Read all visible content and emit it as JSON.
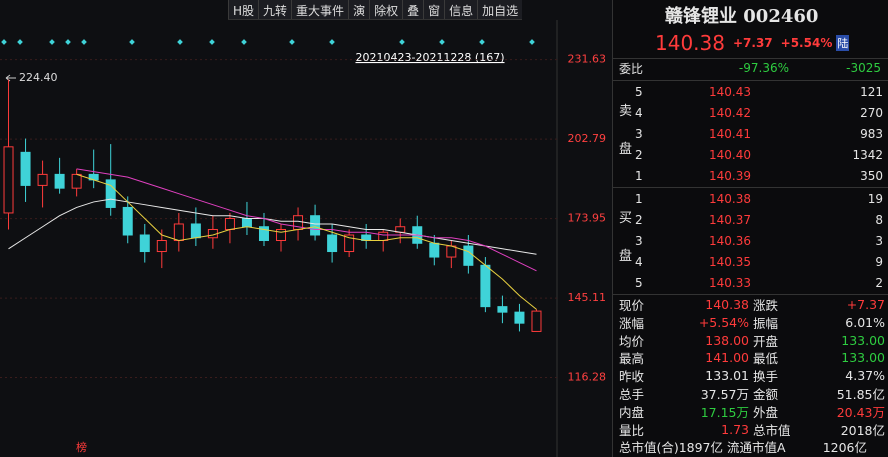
{
  "toolbar": [
    "H股",
    "九转",
    "重大事件",
    "演",
    "除权",
    "叠",
    "窗",
    "信息",
    "加自选"
  ],
  "chart_data": {
    "type": "candlestick",
    "range_label": "20210423-20211228 (167)",
    "high_label": "224.40",
    "corner_label": "榜",
    "open": [
      176,
      198,
      186,
      190,
      185,
      190,
      188,
      178,
      168,
      162,
      166,
      172,
      167,
      170,
      174,
      171,
      166,
      170,
      175,
      168,
      162,
      168,
      166,
      169,
      171,
      165,
      160,
      164,
      157,
      142,
      140,
      133
    ],
    "high": [
      224.4,
      203,
      195,
      196,
      192,
      199,
      201,
      182,
      172,
      170,
      176,
      178,
      175,
      176,
      180,
      176,
      172,
      178,
      179,
      172,
      170,
      172,
      170,
      174,
      175,
      168,
      166,
      168,
      160,
      146,
      143,
      141
    ],
    "low": [
      170,
      180,
      178,
      183,
      182,
      185,
      175,
      165,
      158,
      156,
      162,
      164,
      163,
      165,
      168,
      164,
      162,
      166,
      166,
      158,
      160,
      163,
      162,
      165,
      163,
      157,
      156,
      154,
      140,
      136,
      133,
      133
    ],
    "close": [
      200,
      186,
      190,
      185,
      190,
      188,
      178,
      168,
      162,
      166,
      172,
      167,
      170,
      174,
      171,
      166,
      170,
      175,
      168,
      162,
      168,
      166,
      169,
      171,
      165,
      160,
      164,
      157,
      142,
      140,
      136,
      140.38
    ],
    "up_color": "#ff3b3b",
    "down_color": "#3fd3d8",
    "series": [
      {
        "color": "#e8e8e8",
        "values": [
          163,
          167,
          171,
          175,
          178,
          180,
          181,
          180,
          179,
          178,
          177,
          176,
          175,
          175,
          174,
          174,
          173,
          173,
          172,
          172,
          171,
          170,
          170,
          169,
          168,
          167,
          166,
          165,
          164,
          163,
          162,
          161
        ]
      },
      {
        "color": "#e040c0",
        "values": [
          null,
          null,
          null,
          null,
          192,
          191,
          190,
          189,
          187,
          185,
          183,
          181,
          179,
          177,
          175,
          174,
          172,
          171,
          170,
          170,
          169,
          169,
          168,
          168,
          168,
          167,
          167,
          166,
          164,
          161,
          158,
          155
        ]
      },
      {
        "color": "#e8d040",
        "values": [
          null,
          null,
          null,
          null,
          190,
          188,
          186,
          180,
          174,
          168,
          166,
          167,
          168,
          170,
          171,
          170,
          169,
          170,
          171,
          169,
          167,
          166,
          166,
          167,
          167,
          165,
          164,
          162,
          157,
          152,
          146,
          141
        ]
      }
    ],
    "ylim": [
      93.6,
      242.4
    ],
    "yticks": [
      231.63,
      202.79,
      173.95,
      145.11,
      116.28
    ],
    "grid": true
  },
  "quote": {
    "name": "赣锋锂业 002460",
    "price": "140.38",
    "change": "+7.37",
    "pct": "+5.54%",
    "badge": "陆"
  },
  "committee": {
    "label": "委比",
    "ratio": "-97.36%",
    "diff": "-3025"
  },
  "sell": {
    "side": [
      "卖",
      "盘"
    ],
    "rows": [
      [
        "5",
        "140.43",
        "121"
      ],
      [
        "4",
        "140.42",
        "270"
      ],
      [
        "3",
        "140.41",
        "983"
      ],
      [
        "2",
        "140.40",
        "1342"
      ],
      [
        "1",
        "140.39",
        "350"
      ]
    ]
  },
  "buy": {
    "side": [
      "买",
      "盘"
    ],
    "rows": [
      [
        "1",
        "140.38",
        "19"
      ],
      [
        "2",
        "140.37",
        "8"
      ],
      [
        "3",
        "140.36",
        "3"
      ],
      [
        "4",
        "140.35",
        "9"
      ],
      [
        "5",
        "140.33",
        "2"
      ]
    ]
  },
  "stats": [
    [
      [
        "现价",
        "140.38",
        "red"
      ],
      [
        "涨跌",
        "+7.37",
        "red"
      ]
    ],
    [
      [
        "涨幅",
        "+5.54%",
        "red"
      ],
      [
        "振幅",
        "6.01%",
        "white"
      ]
    ],
    [
      [
        "均价",
        "138.00",
        "red"
      ],
      [
        "开盘",
        "133.00",
        "green"
      ]
    ],
    [
      [
        "最高",
        "141.00",
        "red"
      ],
      [
        "最低",
        "133.00",
        "green"
      ]
    ],
    [
      [
        "昨收",
        "133.01",
        "white"
      ],
      [
        "换手",
        "4.37%",
        "white"
      ]
    ],
    [
      [
        "总手",
        "37.57万",
        "white"
      ],
      [
        "金额",
        "51.85亿",
        "white"
      ]
    ],
    [
      [
        "内盘",
        "17.15万",
        "green"
      ],
      [
        "外盘",
        "20.43万",
        "red"
      ]
    ],
    [
      [
        "量比",
        "1.73",
        "red"
      ],
      [
        "总市值",
        "2018亿",
        "white"
      ]
    ],
    [
      [
        "总市值(合)",
        "1897亿",
        "white"
      ],
      [
        "流通市值A",
        "1206亿",
        "white"
      ]
    ]
  ]
}
